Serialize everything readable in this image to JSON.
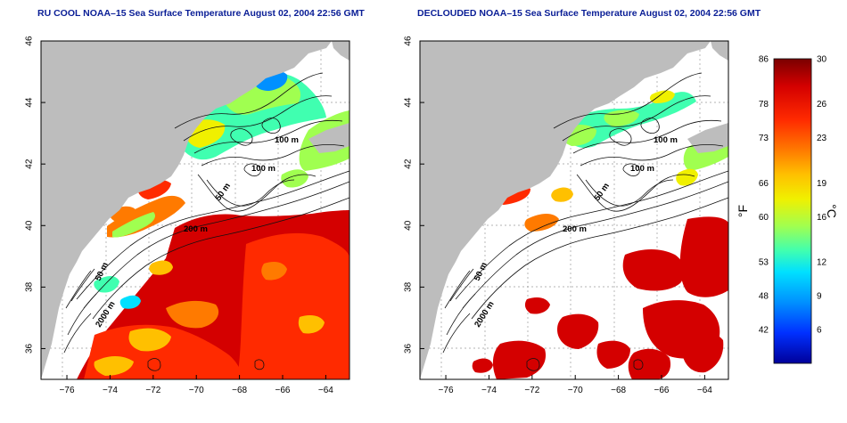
{
  "titles": {
    "left": "RU COOL NOAA–15 Sea Surface Temperature August 02, 2004 22:56 GMT",
    "right": "DECLOUDED NOAA–15 Sea Surface Temperature August 02, 2004 22:56 GMT"
  },
  "axes": {
    "x_ticks": [
      "−76",
      "−74",
      "−72",
      "−70",
      "−68",
      "−66",
      "−64"
    ],
    "x_values": [
      -76,
      -74,
      -72,
      -70,
      -68,
      -66,
      -64
    ],
    "y_ticks": [
      "46",
      "44",
      "42",
      "40",
      "38",
      "36"
    ],
    "y_values": [
      46,
      44,
      42,
      40,
      38,
      36
    ],
    "lon_range": [
      -77.2,
      -62.9
    ],
    "lat_range": [
      35.0,
      46.0
    ]
  },
  "contours": {
    "label_100a": "100 m",
    "label_100b": "100 m",
    "label_50a": "50 m",
    "label_200": "200 m",
    "label_50b": "50 m",
    "label_2000": "2000 m"
  },
  "colorbar": {
    "fahrenheit_labels": [
      "86",
      "78",
      "73",
      "66",
      "60",
      "53",
      "48",
      "42"
    ],
    "celsius_labels": [
      "30",
      "26",
      "23",
      "19",
      "16",
      "12",
      "9",
      "6"
    ],
    "unit_f": "°F",
    "unit_c": "°C",
    "range_c": [
      3,
      30
    ],
    "colors": [
      "#7a0000",
      "#d40000",
      "#ff2a00",
      "#ff7a00",
      "#ffc000",
      "#f0f000",
      "#a0ff50",
      "#40ffb0",
      "#00e0ff",
      "#0090ff",
      "#0030ff",
      "#00009a"
    ]
  },
  "colors": {
    "land": "#bdbdbd",
    "title": "#0a1e96",
    "grid": "#999999"
  }
}
